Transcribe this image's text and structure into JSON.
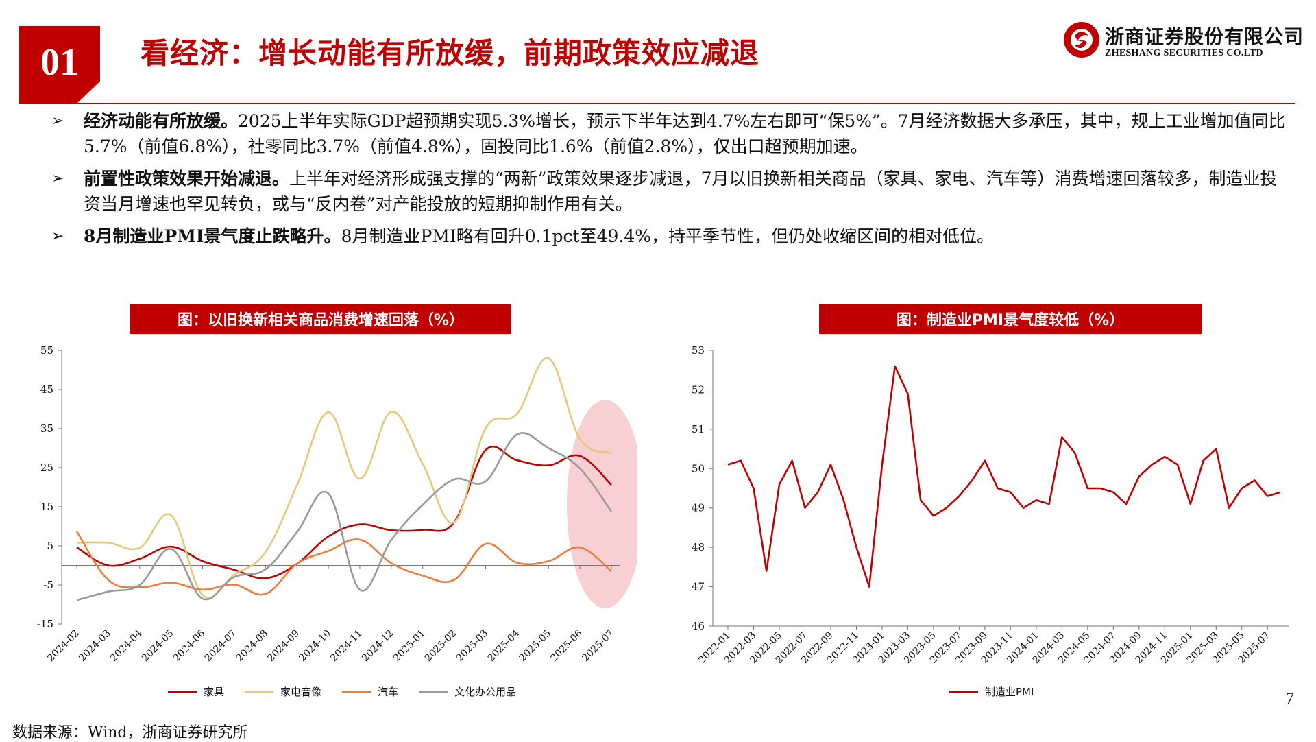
{
  "header": {
    "section_number": "01",
    "title": "看经济：增长动能有所放缓，前期政策效应减退"
  },
  "logo": {
    "name_cn": "浙商证券股份有限公司",
    "name_en": "ZHESHANG SECURITIES CO.LTD",
    "brand_color": "#c00000"
  },
  "bullets": [
    {
      "marker": "➢",
      "bold": "经济动能有所放缓。",
      "text": "2025上半年实际GDP超预期实现5.3%增长，预示下半年达到4.7%左右即可“保5%”。7月经济数据大多承压，其中，规上工业增加值同比5.7%（前值6.8%），社零同比3.7%（前值4.8%），固投同比1.6%（前值2.8%），仅出口超预期加速。"
    },
    {
      "marker": "➢",
      "bold": "前置性政策效果开始减退。",
      "text": "上半年对经济形成强支撑的“两新”政策效果逐步减退，7月以旧换新相关商品（家具、家电、汽车等）消费增速回落较多，制造业投资当月增速也罕见转负，或与“反内卷”对产能投放的短期抑制作用有关。"
    },
    {
      "marker": "➢",
      "bold": "8月制造业PMI景气度止跌略升。",
      "text": "8月制造业PMI略有回升0.1pct至49.4%，持平季节性，但仍处收缩区间的相对低位。"
    }
  ],
  "chart_data": [
    {
      "type": "line",
      "title": "图：以旧换新相关商品消费增速回落（%）",
      "categories": [
        "2024-02",
        "2024-03",
        "2024-04",
        "2024-05",
        "2024-06",
        "2024-07",
        "2024-08",
        "2024-09",
        "2024-10",
        "2024-11",
        "2024-12",
        "2025-01",
        "2025-02",
        "2025-03",
        "2025-04",
        "2025-05",
        "2025-06",
        "2025-07"
      ],
      "ylim": [
        -15,
        55
      ],
      "yticks": [
        55,
        45,
        35,
        25,
        15,
        5,
        -5,
        -15
      ],
      "series": [
        {
          "name": "家具",
          "color": "#c00000",
          "values": [
            4.6,
            0.0,
            1.7,
            4.8,
            1.1,
            -1.1,
            -3.3,
            0.4,
            7.4,
            10.5,
            9.0,
            9.1,
            11.0,
            29.5,
            26.9,
            25.6,
            28.0,
            20.6
          ]
        },
        {
          "name": "家电音像",
          "color": "#e8c77a",
          "values": [
            5.8,
            5.8,
            4.5,
            12.8,
            -7.6,
            -2.4,
            3.4,
            20.5,
            39.2,
            22.2,
            39.3,
            26.0,
            11.0,
            35.1,
            38.8,
            53.0,
            32.4,
            28.7
          ]
        },
        {
          "name": "汽车",
          "color": "#ee7d37",
          "values": [
            8.7,
            -3.7,
            -5.6,
            -4.4,
            -6.2,
            -4.9,
            -7.3,
            0.4,
            3.7,
            6.6,
            0.6,
            -2.6,
            -3.7,
            5.5,
            0.7,
            1.1,
            4.6,
            -1.5
          ]
        },
        {
          "name": "文化办公用品",
          "color": "#999999",
          "values": [
            -8.9,
            -6.7,
            -5.0,
            4.2,
            -8.5,
            -3.0,
            -1.0,
            8.5,
            18.4,
            -6.2,
            6.5,
            15.5,
            22.0,
            21.5,
            33.5,
            30.0,
            24.8,
            13.8
          ]
        }
      ]
    },
    {
      "type": "line",
      "title": "图：制造业PMI景气度较低（%）",
      "categories": [
        "2022-01",
        "2022-02",
        "2022-03",
        "2022-04",
        "2022-05",
        "2022-06",
        "2022-07",
        "2022-08",
        "2022-09",
        "2022-10",
        "2022-11",
        "2022-12",
        "2023-01",
        "2023-02",
        "2023-03",
        "2023-04",
        "2023-05",
        "2023-06",
        "2023-07",
        "2023-08",
        "2023-09",
        "2023-10",
        "2023-11",
        "2023-12",
        "2024-01",
        "2024-02",
        "2024-03",
        "2024-04",
        "2024-05",
        "2024-06",
        "2024-07",
        "2024-08",
        "2024-09",
        "2024-10",
        "2024-11",
        "2024-12",
        "2025-01",
        "2025-02",
        "2025-03",
        "2025-04",
        "2025-05",
        "2025-06",
        "2025-07",
        "2025-08"
      ],
      "xtick_labels": [
        "2022-01",
        "2022-03",
        "2022-05",
        "2022-07",
        "2022-09",
        "2022-11",
        "2023-01",
        "2023-03",
        "2023-05",
        "2023-07",
        "2023-09",
        "2023-11",
        "2024-01",
        "2024-03",
        "2024-05",
        "2024-07",
        "2024-09",
        "2024-11",
        "2025-01",
        "2025-03",
        "2025-05",
        "2025-07"
      ],
      "ylim": [
        46,
        53
      ],
      "yticks": [
        53,
        52,
        51,
        50,
        49,
        48,
        47,
        46
      ],
      "series": [
        {
          "name": "制造业PMI",
          "color": "#c00000",
          "values": [
            50.1,
            50.2,
            49.5,
            47.4,
            49.6,
            50.2,
            49.0,
            49.4,
            50.1,
            49.2,
            48.0,
            47.0,
            50.1,
            52.6,
            51.9,
            49.2,
            48.8,
            49.0,
            49.3,
            49.7,
            50.2,
            49.5,
            49.4,
            49.0,
            49.2,
            49.1,
            50.8,
            50.4,
            49.5,
            49.5,
            49.4,
            49.1,
            49.8,
            50.1,
            50.3,
            50.1,
            49.1,
            50.2,
            50.5,
            49.0,
            49.5,
            49.7,
            49.3,
            49.4
          ]
        }
      ]
    }
  ],
  "footer": {
    "page_number": "7",
    "source": "数据来源：Wind，浙商证券研究所"
  }
}
